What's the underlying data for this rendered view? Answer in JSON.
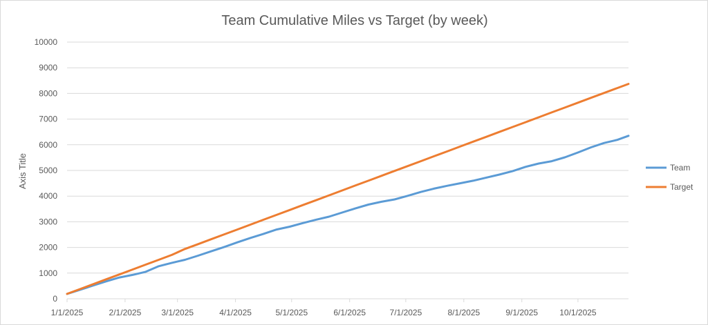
{
  "chart_data": {
    "type": "line",
    "title": "Team Cumulative Miles vs Target (by week)",
    "xlabel": "",
    "ylabel": "Axis Title",
    "ylim": [
      0,
      10000
    ],
    "y_ticks": [
      0,
      1000,
      2000,
      3000,
      4000,
      5000,
      6000,
      7000,
      8000,
      9000,
      10000
    ],
    "x_tick_labels": [
      "1/1/2025",
      "2/1/2025",
      "3/1/2025",
      "4/1/2025",
      "5/1/2025",
      "6/1/2025",
      "7/1/2025",
      "8/1/2025",
      "9/1/2025",
      "10/1/2025"
    ],
    "xlim": [
      "1/1/2025",
      "10/28/2025"
    ],
    "grid": "horizontal",
    "legend_position": "right",
    "series": [
      {
        "name": "Team",
        "color": "#5b9bd5",
        "points": [
          [
            "1/1/2025",
            190
          ],
          [
            "1/8/2025",
            350
          ],
          [
            "1/15/2025",
            520
          ],
          [
            "1/22/2025",
            680
          ],
          [
            "1/29/2025",
            830
          ],
          [
            "2/5/2025",
            930
          ],
          [
            "2/12/2025",
            1050
          ],
          [
            "2/19/2025",
            1270
          ],
          [
            "2/26/2025",
            1400
          ],
          [
            "3/5/2025",
            1520
          ],
          [
            "3/12/2025",
            1680
          ],
          [
            "3/19/2025",
            1850
          ],
          [
            "3/26/2025",
            2020
          ],
          [
            "4/2/2025",
            2200
          ],
          [
            "4/9/2025",
            2370
          ],
          [
            "4/16/2025",
            2530
          ],
          [
            "4/23/2025",
            2700
          ],
          [
            "4/30/2025",
            2810
          ],
          [
            "5/7/2025",
            2950
          ],
          [
            "5/14/2025",
            3080
          ],
          [
            "5/21/2025",
            3200
          ],
          [
            "5/28/2025",
            3360
          ],
          [
            "6/4/2025",
            3520
          ],
          [
            "6/11/2025",
            3670
          ],
          [
            "6/18/2025",
            3780
          ],
          [
            "6/25/2025",
            3870
          ],
          [
            "7/2/2025",
            4010
          ],
          [
            "7/9/2025",
            4160
          ],
          [
            "7/16/2025",
            4290
          ],
          [
            "7/23/2025",
            4400
          ],
          [
            "7/30/2025",
            4500
          ],
          [
            "8/6/2025",
            4600
          ],
          [
            "8/13/2025",
            4720
          ],
          [
            "8/20/2025",
            4840
          ],
          [
            "8/27/2025",
            4970
          ],
          [
            "9/3/2025",
            5140
          ],
          [
            "9/10/2025",
            5270
          ],
          [
            "9/17/2025",
            5360
          ],
          [
            "9/24/2025",
            5510
          ],
          [
            "10/1/2025",
            5700
          ],
          [
            "10/8/2025",
            5900
          ],
          [
            "10/15/2025",
            6070
          ],
          [
            "10/22/2025",
            6190
          ],
          [
            "10/28/2025",
            6350
          ]
        ]
      },
      {
        "name": "Target",
        "color": "#ed7d31",
        "points": [
          [
            "1/1/2025",
            190
          ],
          [
            "1/8/2025",
            380
          ],
          [
            "1/15/2025",
            570
          ],
          [
            "1/22/2025",
            760
          ],
          [
            "1/29/2025",
            950
          ],
          [
            "2/5/2025",
            1140
          ],
          [
            "2/12/2025",
            1330
          ],
          [
            "2/19/2025",
            1520
          ],
          [
            "2/26/2025",
            1710
          ],
          [
            "3/5/2025",
            1940
          ],
          [
            "3/12/2025",
            2130
          ],
          [
            "3/19/2025",
            2320
          ],
          [
            "3/26/2025",
            2510
          ],
          [
            "4/2/2025",
            2700
          ],
          [
            "4/9/2025",
            2890
          ],
          [
            "4/16/2025",
            3080
          ],
          [
            "4/23/2025",
            3270
          ],
          [
            "4/30/2025",
            3460
          ],
          [
            "5/7/2025",
            3650
          ],
          [
            "5/14/2025",
            3840
          ],
          [
            "5/21/2025",
            4030
          ],
          [
            "5/28/2025",
            4220
          ],
          [
            "6/4/2025",
            4410
          ],
          [
            "6/11/2025",
            4600
          ],
          [
            "6/18/2025",
            4790
          ],
          [
            "6/25/2025",
            4980
          ],
          [
            "7/2/2025",
            5170
          ],
          [
            "7/9/2025",
            5360
          ],
          [
            "7/16/2025",
            5550
          ],
          [
            "7/23/2025",
            5740
          ],
          [
            "7/30/2025",
            5930
          ],
          [
            "8/6/2025",
            6120
          ],
          [
            "8/13/2025",
            6310
          ],
          [
            "8/20/2025",
            6500
          ],
          [
            "8/27/2025",
            6690
          ],
          [
            "9/3/2025",
            6880
          ],
          [
            "9/10/2025",
            7070
          ],
          [
            "9/17/2025",
            7260
          ],
          [
            "9/24/2025",
            7450
          ],
          [
            "10/1/2025",
            7640
          ],
          [
            "10/8/2025",
            7830
          ],
          [
            "10/15/2025",
            8020
          ],
          [
            "10/22/2025",
            8210
          ],
          [
            "10/28/2025",
            8370
          ]
        ]
      }
    ]
  }
}
